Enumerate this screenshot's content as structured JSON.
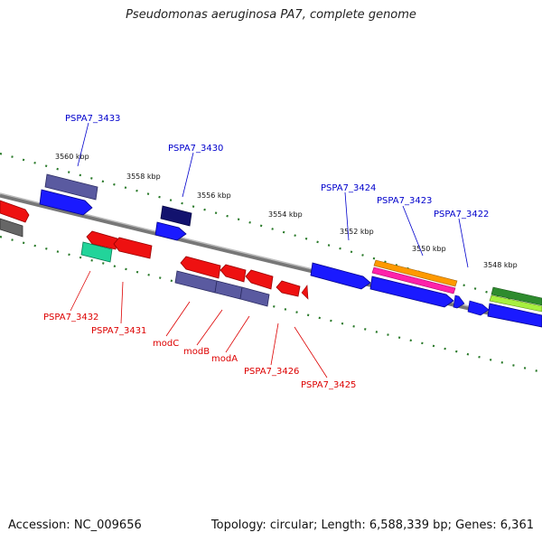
{
  "title": "Pseudomonas aeruginosa PA7, complete genome",
  "accession": "Accession: NC_009656",
  "summary": "Topology: circular; Length: 6,588,339 bp; Genes: 6,361",
  "colors": {
    "backbone": "#888888",
    "forward_gene": "#1a1aff",
    "reverse_gene": "#ee1111",
    "label_forward": "#0000cc",
    "label_reverse": "#dd0000",
    "tick": "#2a7a2a"
  },
  "scale_labels": [
    "3560 kbp",
    "3558 kbp",
    "3556 kbp",
    "3554 kbp",
    "3552 kbp",
    "3550 kbp",
    "3548 kbp"
  ],
  "gene_labels_top": [
    "PSPA7_3433",
    "PSPA7_3430",
    "PSPA7_3424",
    "PSPA7_3423",
    "PSPA7_3422"
  ],
  "gene_labels_bottom": [
    "PSPA7_3432",
    "PSPA7_3431",
    "modC",
    "modB",
    "modA",
    "PSPA7_3426",
    "PSPA7_3425"
  ]
}
